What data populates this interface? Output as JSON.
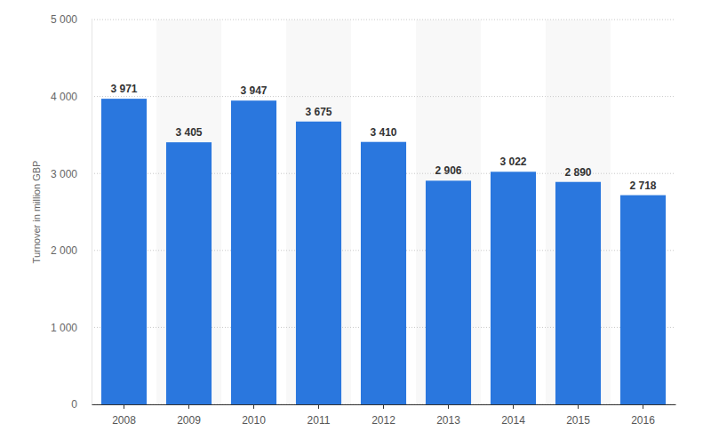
{
  "chart_data": {
    "type": "bar",
    "y_label": "Turnover in million GBP",
    "categories": [
      "2008",
      "2009",
      "2010",
      "2011",
      "2012",
      "2013",
      "2014",
      "2015",
      "2016"
    ],
    "values": [
      3971,
      3405,
      3947,
      3675,
      3410,
      2906,
      3022,
      2890,
      2718
    ],
    "value_labels": [
      "3 971",
      "3 405",
      "3 947",
      "3 675",
      "3 410",
      "2 906",
      "3 022",
      "2 890",
      "2 718"
    ],
    "color": "#2a77de",
    "ylim": [
      0,
      5000
    ],
    "yticks": [
      0,
      {
        "value": 1000,
        "label": "1 000"
      },
      {
        "value": 2000,
        "label": "2 000"
      },
      {
        "value": 3000,
        "label": "3 000"
      },
      {
        "value": 4000,
        "label": "4 000"
      },
      {
        "value": 5000,
        "label": "5 000"
      }
    ],
    "grid": true,
    "data_labels": true
  }
}
